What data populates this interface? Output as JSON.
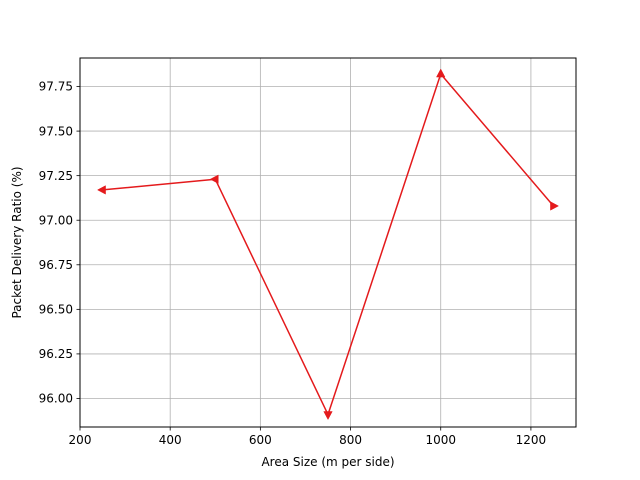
{
  "chart_data": {
    "type": "line",
    "title": "",
    "xlabel": "Area Size (m per side)",
    "ylabel": "Packet Delivery Ratio (%)",
    "xlim": [
      200,
      1300
    ],
    "ylim": [
      95.84,
      97.91
    ],
    "xticks": [
      200,
      400,
      600,
      800,
      1000,
      1200
    ],
    "xtick_labels": [
      "200",
      "400",
      "600",
      "800",
      "1000",
      "1200"
    ],
    "yticks": [
      96.0,
      96.25,
      96.5,
      96.75,
      97.0,
      97.25,
      97.5,
      97.75
    ],
    "ytick_labels": [
      "96.00",
      "96.25",
      "96.50",
      "96.75",
      "97.00",
      "97.25",
      "97.50",
      "97.75"
    ],
    "grid": true,
    "series": [
      {
        "color": "#e41a1c",
        "marker": "triangle",
        "x": [
          250,
          500,
          750,
          1000,
          1250
        ],
        "y": [
          97.17,
          97.23,
          95.91,
          97.82,
          97.08
        ],
        "marker_directions": [
          "left",
          "left",
          "down",
          "up",
          "right"
        ]
      }
    ]
  }
}
